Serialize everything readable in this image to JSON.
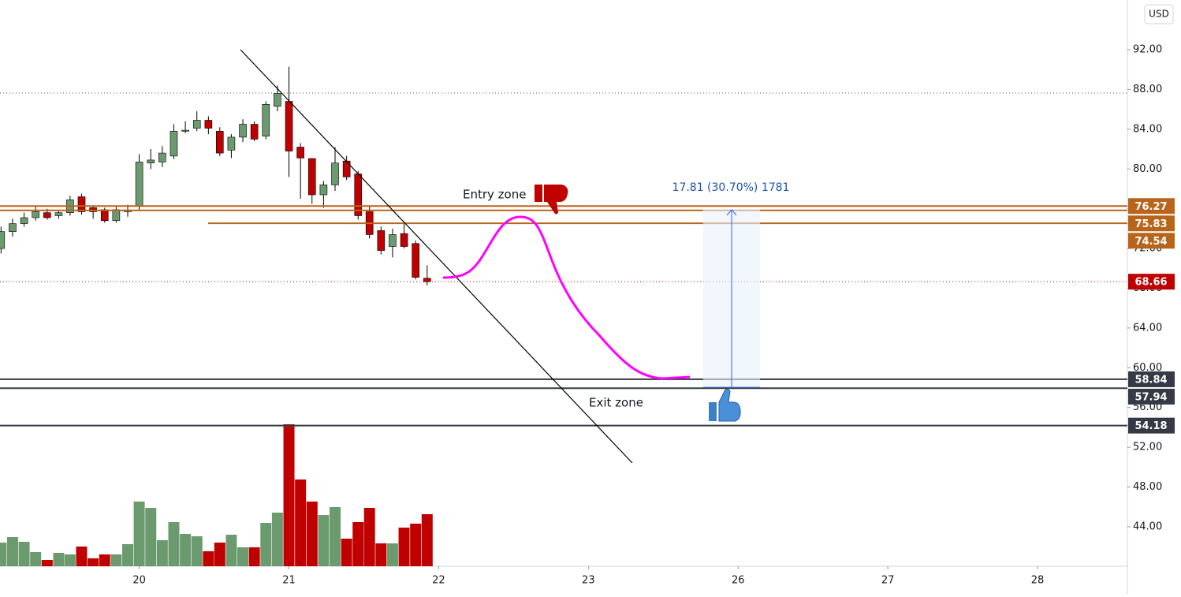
{
  "chart_data": {
    "type": "candlestick",
    "currency": "USD",
    "x": [
      -0.923,
      -0.846,
      -0.769,
      -0.692,
      -0.615,
      -0.538,
      -0.462,
      -0.385,
      -0.308,
      -0.231,
      -0.154,
      -0.077,
      0,
      0.077,
      0.154,
      0.231,
      0.308,
      0.385,
      0.462,
      0.538,
      0.615,
      0.692,
      0.769,
      0.846,
      0.923,
      1,
      1.077,
      1.154,
      1.231,
      1.308,
      1.385,
      1.462,
      1.538,
      1.615,
      1.692,
      1.769,
      1.846,
      1.923
    ],
    "open": [
      72.0,
      73.7,
      74.5,
      75.1,
      75.6,
      75.3,
      75.6,
      77.2,
      76.1,
      75.9,
      74.8,
      75.7,
      76.3,
      80.6,
      80.7,
      81.3,
      83.8,
      84.1,
      84.9,
      83.8,
      81.9,
      83.2,
      84.5,
      83.3,
      86.3,
      86.8,
      82.2,
      81.05,
      77.4,
      78.4,
      80.8,
      79.5,
      75.7,
      73.8,
      72.2,
      73.5,
      72.5,
      69.0
    ],
    "high": [
      74.2,
      75.0,
      75.6,
      76.2,
      76.0,
      75.8,
      77.3,
      77.5,
      76.3,
      76.1,
      76.2,
      76.4,
      81.5,
      82.0,
      82.3,
      84.5,
      84.8,
      85.8,
      85.3,
      84.2,
      83.5,
      85.0,
      84.8,
      86.8,
      88.4,
      90.3,
      82.6,
      81.1,
      78.8,
      82.2,
      81.3,
      79.8,
      76.3,
      74.2,
      74.0,
      74.6,
      72.8,
      70.3
    ],
    "low": [
      71.5,
      73.2,
      74.2,
      74.8,
      74.9,
      75.0,
      75.3,
      75.4,
      75.0,
      74.6,
      74.6,
      75.2,
      75.8,
      80.0,
      80.2,
      81.0,
      83.6,
      83.8,
      83.5,
      81.3,
      81.1,
      82.7,
      82.8,
      83.0,
      85.8,
      79.2,
      77.0,
      76.5,
      76.1,
      77.8,
      78.9,
      74.9,
      73.0,
      71.4,
      71.1,
      72.0,
      68.9,
      68.3
    ],
    "close": [
      73.7,
      74.5,
      75.1,
      75.7,
      75.1,
      75.6,
      76.9,
      75.7,
      75.7,
      74.8,
      75.9,
      75.8,
      80.7,
      80.9,
      81.6,
      83.8,
      83.9,
      84.9,
      84.1,
      81.6,
      83.2,
      84.5,
      83.0,
      86.5,
      87.6,
      81.8,
      81.1,
      77.4,
      78.4,
      80.6,
      79.2,
      75.3,
      73.4,
      71.8,
      73.4,
      72.2,
      69.1,
      68.66
    ],
    "volume": [
      30,
      37,
      31,
      18,
      8,
      17,
      15,
      25,
      10,
      15,
      15,
      28,
      82,
      74,
      33,
      56,
      41,
      38,
      19,
      30,
      40,
      24,
      24,
      55,
      68,
      180,
      110,
      82,
      65,
      75,
      35,
      56,
      74,
      29,
      29,
      49,
      54,
      66
    ],
    "up_color": "#6b9a6f",
    "down_color": "#c00000",
    "xlim": [
      -0.93,
      6.6
    ],
    "xticks": [
      {
        "value": 0,
        "label": "20"
      },
      {
        "value": 1,
        "label": "21"
      },
      {
        "value": 2,
        "label": "22"
      },
      {
        "value": 3,
        "label": "23"
      },
      {
        "value": 4,
        "label": "26"
      },
      {
        "value": 5,
        "label": "27"
      },
      {
        "value": 6,
        "label": "28"
      }
    ],
    "ylim": [
      40.03,
      97.0
    ],
    "yticks": [
      {
        "value": 44,
        "label": "44.00"
      },
      {
        "value": 48,
        "label": "48.00"
      },
      {
        "value": 52,
        "label": "52.00"
      },
      {
        "value": 56,
        "label": "56.00"
      },
      {
        "value": 60,
        "label": "60.00"
      },
      {
        "value": 64,
        "label": "64.00"
      },
      {
        "value": 68,
        "label": "68.00"
      },
      {
        "value": 72,
        "label": "72.00"
      },
      {
        "value": 76,
        "label": "76.00"
      },
      {
        "value": 80,
        "label": "80.00"
      },
      {
        "value": 84,
        "label": "84.00"
      },
      {
        "value": 88,
        "label": "88.00"
      },
      {
        "value": 92,
        "label": "92.00"
      }
    ],
    "levels": [
      {
        "value": 76.27,
        "color": "#b8651b",
        "style": "solid",
        "tag": true
      },
      {
        "value": 75.83,
        "color": "#b8651b",
        "style": "solid",
        "tag": true
      },
      {
        "value": 74.54,
        "color": "#b8651b",
        "style": "solid",
        "tag": true,
        "from_x": 0.46
      },
      {
        "value": 68.66,
        "color": "#c00000",
        "style": "dotted",
        "tag": true
      },
      {
        "value": 87.64,
        "color": "#555555",
        "style": "dotted",
        "tag": false
      },
      {
        "value": 58.84,
        "color": "#363a45",
        "style": "solid",
        "tag": true
      },
      {
        "value": 57.94,
        "color": "#363a45",
        "style": "solid",
        "tag": true
      },
      {
        "value": 54.18,
        "color": "#363a45",
        "style": "solid",
        "tag": true
      }
    ],
    "annotations": {
      "entry": "Entry zone",
      "exit": "Exit zone",
      "measure": "17.81 (30.70%) 1781"
    }
  }
}
